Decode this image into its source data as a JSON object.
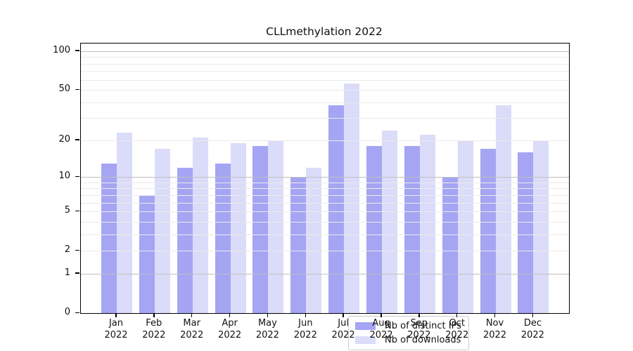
{
  "chart_data": {
    "type": "bar",
    "title": "CLLmethylation 2022",
    "scale": "symlog-log1p",
    "categories": [
      "Jan 2022",
      "Feb 2022",
      "Mar 2022",
      "Apr 2022",
      "May 2022",
      "Jun 2022",
      "Jul 2022",
      "Aug 2022",
      "Sep 2022",
      "Oct 2022",
      "Nov 2022",
      "Dec 2022"
    ],
    "series": [
      {
        "name": "Nb of distinct IPs",
        "color": "#a5a5f4",
        "values": [
          13,
          7,
          12,
          13,
          18,
          10,
          38,
          18,
          18,
          10,
          17,
          16
        ]
      },
      {
        "name": "Nb of downloads",
        "color": "#dbdbfa",
        "values": [
          23,
          17,
          21,
          19,
          20,
          12,
          56,
          24,
          22,
          20,
          38,
          20
        ]
      }
    ],
    "yticks_labeled": [
      0,
      1,
      2,
      5,
      10,
      20,
      50,
      100
    ],
    "yticks_minor": [
      3,
      4,
      6,
      7,
      8,
      9,
      30,
      40,
      60,
      70,
      80,
      90
    ],
    "yticks_major_grid": [
      1,
      10,
      100
    ],
    "ylim": [
      0,
      100
    ],
    "grid": true,
    "legend_position": "inside-bottom-center",
    "colors": {
      "major_grid": "#c0c0c0",
      "minor_grid": "#ebebeb",
      "frame": "#000000"
    }
  }
}
